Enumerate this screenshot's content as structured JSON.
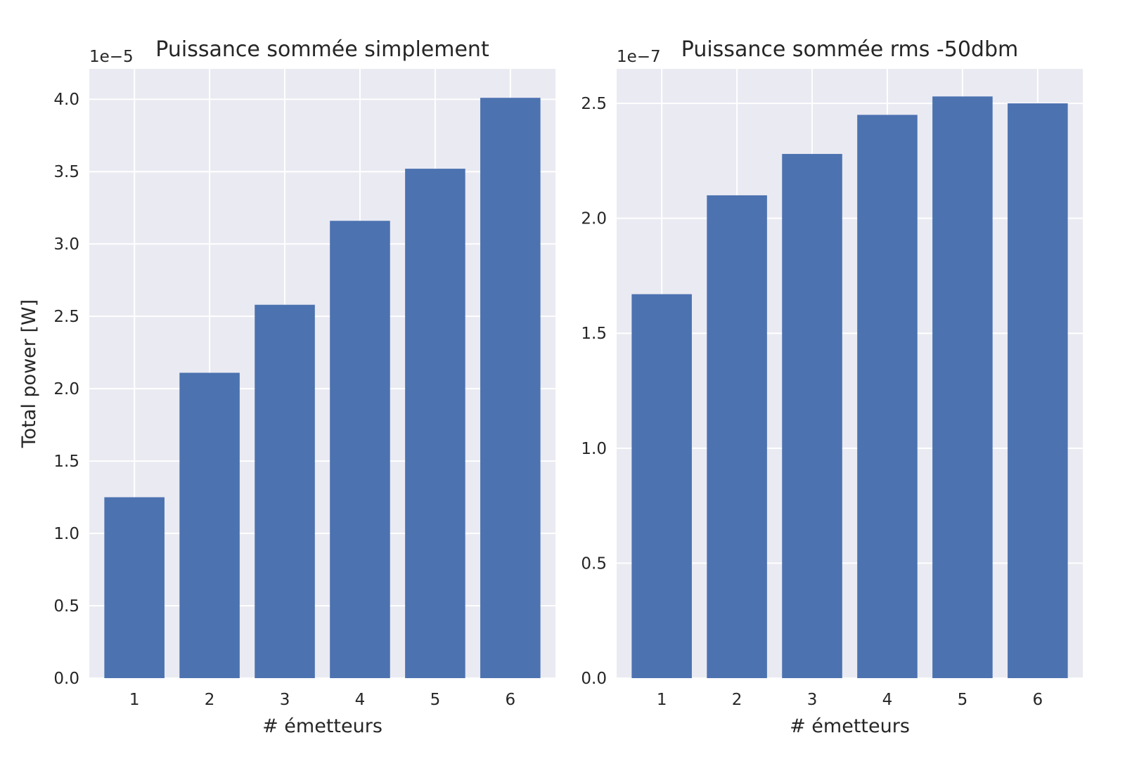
{
  "style": {
    "background": "#eaeaf2",
    "grid": "#ffffff",
    "bar": "#4c72b0",
    "text": "#262626"
  },
  "chart_data": [
    {
      "type": "bar",
      "title": "Puissance sommée simplement",
      "xlabel": "# émetteurs",
      "ylabel": "Total power [W]",
      "offset_text": "1e−5",
      "categories": [
        "1",
        "2",
        "3",
        "4",
        "5",
        "6"
      ],
      "values": [
        1.25,
        2.11,
        2.58,
        3.16,
        3.52,
        4.01
      ],
      "ylim": [
        0,
        4.21
      ],
      "yticks": [
        0.0,
        0.5,
        1.0,
        1.5,
        2.0,
        2.5,
        3.0,
        3.5,
        4.0
      ],
      "ytick_labels": [
        "0.0",
        "0.5",
        "1.0",
        "1.5",
        "2.0",
        "2.5",
        "3.0",
        "3.5",
        "4.0"
      ],
      "grid": true,
      "legend": "none"
    },
    {
      "type": "bar",
      "title": "Puissance sommée rms -50dbm",
      "xlabel": "# émetteurs",
      "ylabel": "",
      "offset_text": "1e−7",
      "categories": [
        "1",
        "2",
        "3",
        "4",
        "5",
        "6"
      ],
      "values": [
        1.67,
        2.1,
        2.28,
        2.45,
        2.53,
        2.5
      ],
      "ylim": [
        0,
        2.65
      ],
      "yticks": [
        0.0,
        0.5,
        1.0,
        1.5,
        2.0,
        2.5
      ],
      "ytick_labels": [
        "0.0",
        "0.5",
        "1.0",
        "1.5",
        "2.0",
        "2.5"
      ],
      "grid": true,
      "legend": "none"
    }
  ]
}
